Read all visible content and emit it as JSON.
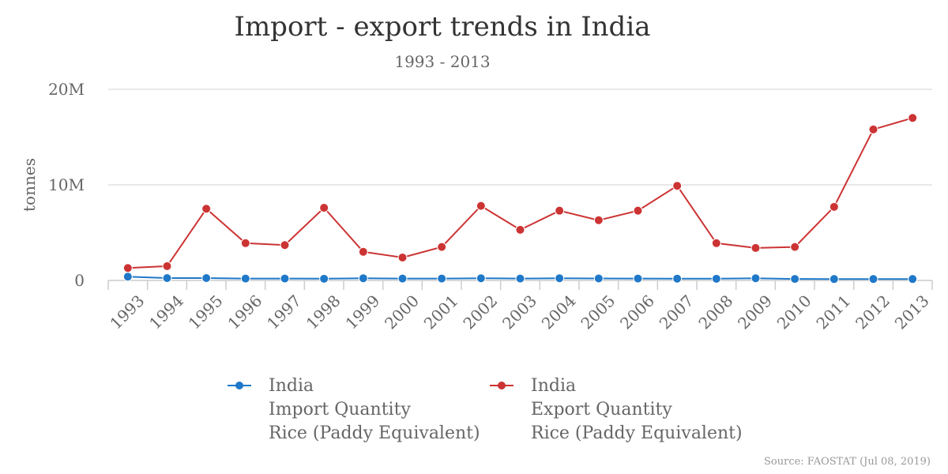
{
  "chart_data": {
    "type": "line",
    "title": "Import - export trends in India",
    "subtitle": "1993 - 2013",
    "ylabel": "tonnes",
    "xlabel": "",
    "x": [
      "1993",
      "1994",
      "1995",
      "1996",
      "1997",
      "1998",
      "1999",
      "2000",
      "2001",
      "2002",
      "2003",
      "2004",
      "2005",
      "2006",
      "2007",
      "2008",
      "2009",
      "2010",
      "2011",
      "2012",
      "2013"
    ],
    "y_ticks": [
      {
        "value": 0,
        "label": "0"
      },
      {
        "value": 10000000,
        "label": "10M"
      },
      {
        "value": 20000000,
        "label": "20M"
      }
    ],
    "ylim": [
      0,
      20000000
    ],
    "grid": true,
    "legend_position": "bottom",
    "series": [
      {
        "name_lines": [
          "India",
          "Import Quantity",
          "Rice (Paddy Equivalent)"
        ],
        "color": "#1f78c8",
        "values": [
          400000,
          250000,
          250000,
          200000,
          200000,
          180000,
          230000,
          200000,
          200000,
          230000,
          200000,
          230000,
          210000,
          200000,
          190000,
          180000,
          230000,
          160000,
          150000,
          150000,
          150000
        ]
      },
      {
        "name_lines": [
          "India",
          "Export Quantity",
          "Rice (Paddy Equivalent)"
        ],
        "color": "#cc3333",
        "values": [
          1300000,
          1500000,
          7500000,
          3900000,
          3700000,
          7600000,
          3000000,
          2400000,
          3500000,
          7800000,
          5300000,
          7300000,
          6300000,
          7300000,
          9900000,
          3900000,
          3400000,
          3500000,
          7700000,
          15800000,
          17000000
        ]
      }
    ]
  },
  "source": "Source: FAOSTAT (Jul 08, 2019)"
}
